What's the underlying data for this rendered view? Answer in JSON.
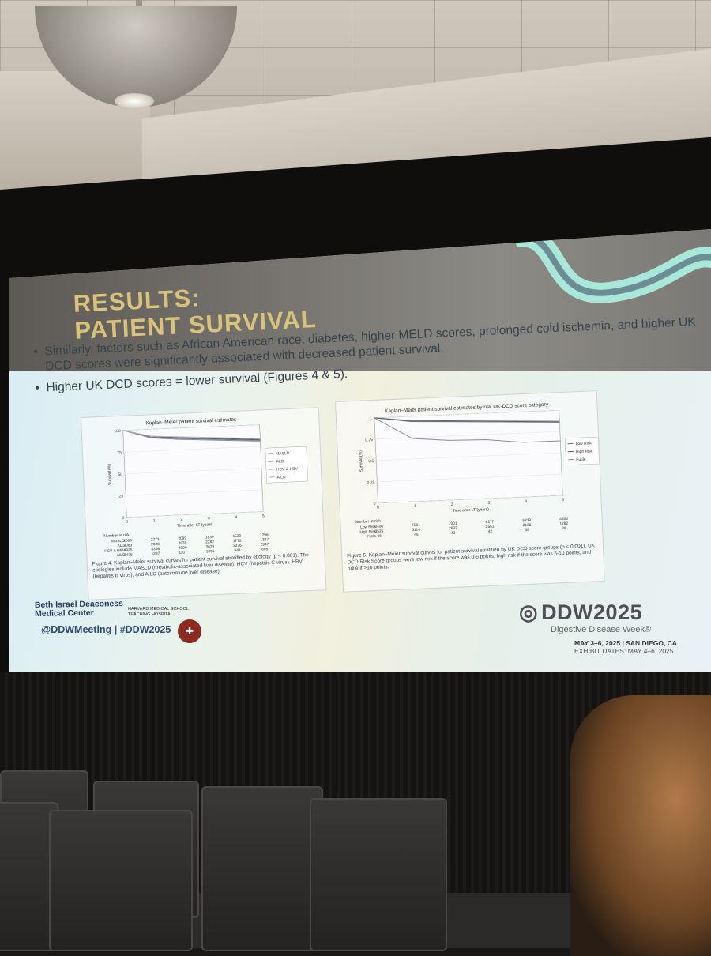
{
  "slide": {
    "title_line1": "RESULTS:",
    "title_line2": "PATIENT SURVIVAL",
    "bullet1": "Similarly, factors such as African American race, diabetes, higher MELD scores, prolonged cold ischemia, and higher UK DCD scores were significantly associated with decreased patient survival.",
    "bullet2": "Higher UK DCD scores = lower survival (Figures 4 & 5).",
    "handle": "@DDWMeeting | #DDW2025",
    "bid_line1": "Beth Israel Deaconess",
    "bid_line2": "Medical Center",
    "hms_line1": "HARVARD MEDICAL SCHOOL",
    "hms_line2": "TEACHING HOSPITAL",
    "ddw_logo": "DDW2025",
    "ddw_sub": "Digestive Disease Week®",
    "ddw_dates": "MAY 3–6, 2025 | SAN DIEGO, CA",
    "ddw_exhibit": "EXHIBIT DATES: MAY 4–6, 2025"
  },
  "chart_data": [
    {
      "type": "line",
      "title": "Kaplan–Meier patient survival estimates",
      "xlabel": "Time after LT (years)",
      "ylabel": "Survival (%)",
      "x": [
        0,
        1,
        2,
        3,
        4,
        5
      ],
      "xlim": [
        0,
        5
      ],
      "ylim": [
        0,
        100
      ],
      "yticks": [
        0,
        25,
        50,
        75,
        100
      ],
      "legend": "right",
      "series": [
        {
          "name": "MASLD",
          "values": [
            100,
            91,
            88,
            86,
            84,
            82
          ]
        },
        {
          "name": "ALD",
          "values": [
            100,
            92,
            89,
            87,
            85,
            83
          ]
        },
        {
          "name": "HCV & HBV",
          "values": [
            100,
            90,
            87,
            85,
            83,
            81
          ]
        },
        {
          "name": "AILD",
          "values": [
            100,
            92,
            90,
            88,
            86,
            84
          ]
        }
      ],
      "risk_label": "Number at risk",
      "risk_table": [
        {
          "group": "MASLD",
          "values": [
            "2564",
            "2273",
            "2099",
            "1839",
            "1520",
            "1266"
          ]
        },
        {
          "group": "ALD",
          "values": [
            "3083",
            "2820",
            "2630",
            "2282",
            "1775",
            "1387"
          ]
        },
        {
          "group": "HCV & HBV",
          "values": [
            "4925",
            "4346",
            "4000",
            "3679",
            "3276",
            "2947"
          ]
        },
        {
          "group": "AILD",
          "values": [
            "1435",
            "1297",
            "1207",
            "1091",
            "941",
            "805"
          ]
        }
      ],
      "caption": "Figure 4. Kaplan–Meier survival curves for patient survival stratified by etiology (p < 0.001). The etiologies include MASLD (metabolic-associated liver disease), HCV (hepatitis C virus), HBV (hepatitis B virus), and AILD (autoimmune liver disease)."
    },
    {
      "type": "line",
      "title": "Kaplan–Meier patient survival estimates by risk UK-DCD score category",
      "xlabel": "Time after LT (years)",
      "ylabel": "Survival (%)",
      "x": [
        0,
        1,
        2,
        3,
        4,
        5
      ],
      "xlim": [
        0,
        5
      ],
      "ylim": [
        0,
        1
      ],
      "yticks": [
        0,
        0.25,
        0.5,
        0.75,
        1
      ],
      "legend": "right",
      "series": [
        {
          "name": "Low Risk",
          "values": [
            1.0,
            0.95,
            0.93,
            0.91,
            0.89,
            0.87
          ]
        },
        {
          "name": "High Risk",
          "values": [
            1.0,
            0.94,
            0.92,
            0.9,
            0.88,
            0.86
          ]
        },
        {
          "name": "Futile",
          "values": [
            1.0,
            0.74,
            0.7,
            0.69,
            0.64,
            0.64
          ]
        }
      ],
      "risk_label": "Number at risk",
      "risk_table": [
        {
          "group": "Low Risk",
          "values": [
            "8406",
            "7581",
            "7001",
            "6277",
            "5339",
            "4555"
          ]
        },
        {
          "group": "High Risk",
          "values": [
            "3525",
            "3114",
            "2892",
            "2551",
            "2138",
            "1782"
          ]
        },
        {
          "group": "Futile",
          "values": [
            "66",
            "46",
            "43",
            "42",
            "35",
            "28"
          ]
        }
      ],
      "caption": "Figure 5. Kaplan–Meier survival curves for patient survival stratified by UK DCD score groups (p < 0.001). UK DCD Risk Score groups were low risk if the score was 0-5 points, high risk if the score was 6-10 points, and futile if >10 points."
    }
  ],
  "colors": {
    "title_gold": "#d9c27a",
    "line_gray": "#6b6b78",
    "seal_red": "#8c2b21"
  }
}
